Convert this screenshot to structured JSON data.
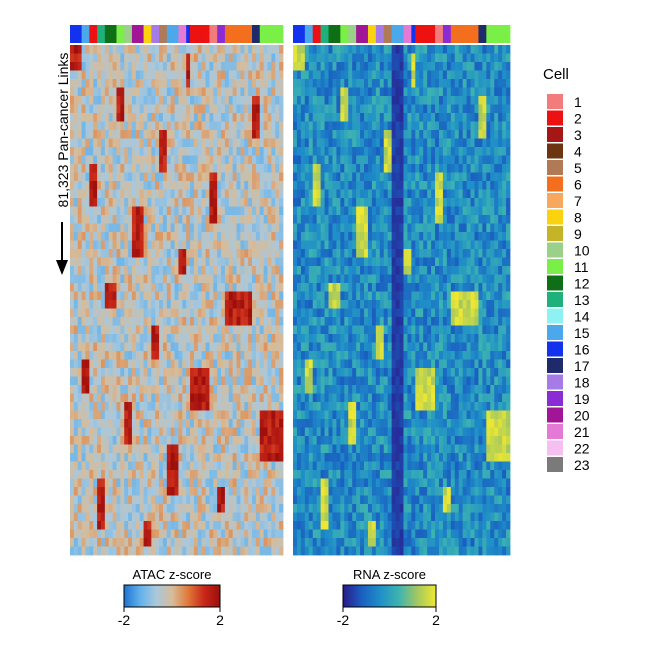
{
  "chart_data": {
    "type": "heatmap",
    "ylabel": "81,323 Pan-cancer Links",
    "panels": [
      {
        "name": "ATAC",
        "colorbar_title": "ATAC z-score",
        "scale_min": -2,
        "scale_max": 2,
        "colors": [
          "#1e73d2",
          "#62b1ea",
          "#a9c8dd",
          "#d6bc9a",
          "#e07a3a",
          "#c82818",
          "#9c0e0c"
        ]
      },
      {
        "name": "RNA",
        "colorbar_title": "RNA z-score",
        "scale_min": -2,
        "scale_max": 2,
        "colors": [
          "#2a1a8a",
          "#1a5fc0",
          "#1f8fc8",
          "#3db3b0",
          "#a3c860",
          "#f0e830"
        ]
      }
    ],
    "colorbar_ticks": [
      {
        "panel": 0,
        "min_label": "-2",
        "max_label": "2"
      },
      {
        "panel": 1,
        "min_label": "-2",
        "max_label": "2"
      }
    ],
    "legend": {
      "title": "Cell",
      "items": [
        {
          "label": "1",
          "color": "#f27c7c"
        },
        {
          "label": "2",
          "color": "#ee1111"
        },
        {
          "label": "3",
          "color": "#a51616"
        },
        {
          "label": "4",
          "color": "#6d3412"
        },
        {
          "label": "5",
          "color": "#b07a56"
        },
        {
          "label": "6",
          "color": "#f36f1d"
        },
        {
          "label": "7",
          "color": "#f8a75e"
        },
        {
          "label": "8",
          "color": "#fbd210"
        },
        {
          "label": "9",
          "color": "#c4b426"
        },
        {
          "label": "10",
          "color": "#9bd08a"
        },
        {
          "label": "11",
          "color": "#7aef48"
        },
        {
          "label": "12",
          "color": "#0f6f16"
        },
        {
          "label": "13",
          "color": "#1fb07c"
        },
        {
          "label": "14",
          "color": "#8ff2f2"
        },
        {
          "label": "15",
          "color": "#4ba8ea"
        },
        {
          "label": "16",
          "color": "#1232ee"
        },
        {
          "label": "17",
          "color": "#1f2a6a"
        },
        {
          "label": "18",
          "color": "#a57be6"
        },
        {
          "label": "19",
          "color": "#8a2bd6"
        },
        {
          "label": "20",
          "color": "#a01696"
        },
        {
          "label": "21",
          "color": "#e579d6"
        },
        {
          "label": "22",
          "color": "#f6bff2"
        },
        {
          "label": "23",
          "color": "#7a7a7a"
        }
      ]
    },
    "column_groups": [
      {
        "cell": "16",
        "columns": 3
      },
      {
        "cell": "15",
        "columns": 2
      },
      {
        "cell": "2",
        "columns": 2
      },
      {
        "cell": "13",
        "columns": 2
      },
      {
        "cell": "12",
        "columns": 3
      },
      {
        "cell": "11",
        "columns": 2
      },
      {
        "cell": "10",
        "columns": 2
      },
      {
        "cell": "20",
        "columns": 3
      },
      {
        "cell": "8",
        "columns": 2
      },
      {
        "cell": "18",
        "columns": 2
      },
      {
        "cell": "5",
        "columns": 2
      },
      {
        "cell": "15",
        "columns": 3
      },
      {
        "cell": "21",
        "columns": 2
      },
      {
        "cell": "16",
        "columns": 1
      },
      {
        "cell": "2",
        "columns": 5
      },
      {
        "cell": "1",
        "columns": 2
      },
      {
        "cell": "19",
        "columns": 2
      },
      {
        "cell": "6",
        "columns": 7
      },
      {
        "cell": "17",
        "columns": 2
      },
      {
        "cell": "11",
        "columns": 6
      }
    ]
  }
}
